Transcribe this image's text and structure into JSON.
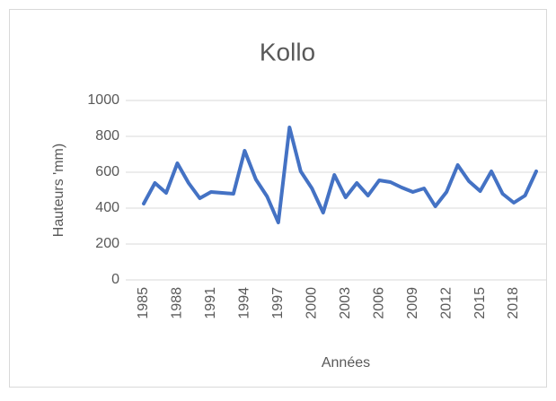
{
  "chart_data": {
    "type": "line",
    "title": "Kollo",
    "xlabel": "Années",
    "ylabel": "Hauteurs 'mm)",
    "x": [
      1985,
      1986,
      1987,
      1988,
      1989,
      1990,
      1991,
      1992,
      1993,
      1994,
      1995,
      1996,
      1997,
      1998,
      1999,
      2000,
      2001,
      2002,
      2003,
      2004,
      2005,
      2006,
      2007,
      2008,
      2009,
      2010,
      2011,
      2012,
      2013,
      2014,
      2015,
      2016,
      2017,
      2018,
      2019,
      2020
    ],
    "series": [
      {
        "name": "Kollo",
        "color": "#4472c4",
        "values": [
          425,
          540,
          485,
          650,
          540,
          455,
          490,
          485,
          480,
          720,
          560,
          465,
          320,
          850,
          605,
          510,
          375,
          585,
          460,
          540,
          470,
          555,
          545,
          515,
          490,
          510,
          410,
          490,
          640,
          550,
          495,
          605,
          480,
          430,
          470,
          605
        ]
      }
    ],
    "xlim": [
      1985,
      2020
    ],
    "xticks": [
      1985,
      1988,
      1991,
      1994,
      1997,
      2000,
      2003,
      2006,
      2009,
      2012,
      2015,
      2018
    ],
    "ylim": [
      0,
      1000
    ],
    "yticks": [
      0,
      200,
      400,
      600,
      800,
      1000
    ],
    "grid": true
  }
}
